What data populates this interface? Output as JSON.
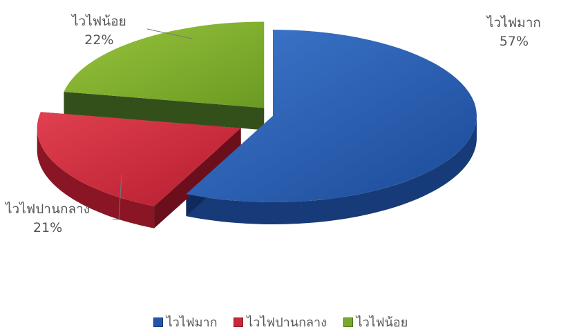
{
  "chart_data": {
    "type": "pie",
    "title": "",
    "categories": [
      "ไวไฟมาก",
      "ไวไฟปานกลาง",
      "ไวไฟน้อย"
    ],
    "values": [
      57,
      21,
      22
    ],
    "value_labels": [
      "57%",
      "21%",
      "22%"
    ],
    "colors": [
      "#2356a8",
      "#c8283a",
      "#78a82c"
    ],
    "style": "3d-exploded",
    "legend_position": "bottom"
  }
}
